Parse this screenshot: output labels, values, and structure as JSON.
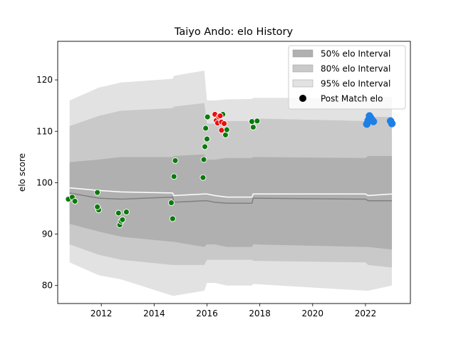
{
  "chart_data": {
    "type": "scatter",
    "title": "Taiyo Ando: elo History",
    "xlabel": "",
    "ylabel": "elo score",
    "xlim": [
      2010.35,
      2023.7
    ],
    "ylim": [
      76.5,
      127.5
    ],
    "x_ticks": [
      2012,
      2014,
      2016,
      2018,
      2020,
      2022
    ],
    "y_ticks": [
      80,
      90,
      100,
      110,
      120
    ],
    "grid": false,
    "legend_position": "top-right",
    "legend": [
      {
        "label": "50% elo Interval",
        "kind": "band",
        "color": "#b0b0b0"
      },
      {
        "label": "80% elo Interval",
        "kind": "band",
        "color": "#c9c9c9"
      },
      {
        "label": "95% elo Interval",
        "kind": "band",
        "color": "#e2e2e2"
      },
      {
        "label": "Post Match elo",
        "kind": "marker",
        "color": "#000000"
      }
    ],
    "colors": {
      "band50": "#b0b0b0",
      "band80": "#c9c9c9",
      "band95": "#e2e2e2",
      "mean_line": "#808080",
      "median_line": "#ffffff",
      "green_points": "#0b7a0b",
      "red_points": "#e81010",
      "blue_points": "#1e7fe6"
    },
    "bands": {
      "x": [
        2010.8,
        2011.9,
        2012.75,
        2014.7,
        2014.75,
        2015.9,
        2016.0,
        2016.3,
        2016.75,
        2017.7,
        2017.75,
        2022.0,
        2022.1,
        2023.0
      ],
      "p95_high": [
        116.0,
        118.5,
        119.5,
        120.2,
        120.8,
        121.8,
        116.0,
        116.0,
        116.2,
        116.3,
        116.5,
        116.5,
        116.7,
        116.7
      ],
      "p95_low": [
        84.5,
        82.0,
        81.2,
        78.0,
        78.0,
        79.0,
        80.5,
        80.5,
        80.0,
        80.0,
        80.3,
        79.0,
        79.0,
        80.0
      ],
      "p80_high": [
        111.0,
        113.0,
        114.0,
        114.5,
        114.8,
        115.5,
        111.5,
        111.5,
        112.0,
        112.0,
        112.5,
        112.0,
        112.8,
        112.8
      ],
      "p80_low": [
        88.0,
        86.0,
        85.0,
        84.0,
        84.0,
        84.0,
        85.0,
        85.0,
        85.0,
        85.0,
        84.8,
        84.5,
        84.0,
        83.5
      ],
      "p50_high": [
        104.0,
        104.5,
        105.0,
        105.0,
        105.2,
        105.5,
        104.5,
        104.5,
        104.8,
        104.8,
        105.0,
        104.8,
        105.2,
        105.2
      ],
      "p50_low": [
        92.0,
        90.5,
        89.5,
        88.5,
        88.5,
        87.5,
        88.0,
        88.0,
        87.5,
        87.5,
        88.0,
        87.5,
        87.5,
        87.0
      ],
      "mean": [
        98.0,
        97.0,
        96.8,
        97.2,
        96.2,
        96.5,
        96.5,
        96.2,
        96.0,
        96.0,
        97.0,
        96.8,
        96.5,
        96.5
      ],
      "median": [
        99.0,
        98.5,
        98.2,
        98.0,
        97.5,
        97.8,
        97.8,
        97.5,
        97.2,
        97.2,
        97.8,
        97.8,
        97.5,
        97.8
      ]
    },
    "series": [
      {
        "group": "green",
        "x": [
          2010.75,
          2010.9,
          2011.0,
          2011.85,
          2011.9,
          2011.85,
          2012.65,
          2012.7,
          2012.75,
          2012.8,
          2012.95,
          2014.65,
          2014.7,
          2014.75,
          2014.8,
          2015.85,
          2015.88,
          2015.92,
          2015.95,
          2016.0,
          2016.02,
          2016.6,
          2016.7,
          2016.75,
          2017.7,
          2017.75,
          2017.9
        ],
        "y": [
          96.8,
          97.2,
          96.4,
          98.1,
          94.7,
          95.3,
          94.1,
          91.8,
          92.5,
          92.8,
          94.3,
          96.1,
          93.0,
          101.2,
          104.3,
          101.0,
          104.5,
          107.0,
          110.6,
          108.5,
          112.8,
          113.3,
          109.3,
          110.3,
          111.9,
          110.8,
          112.0
        ]
      },
      {
        "group": "red",
        "x": [
          2016.3,
          2016.35,
          2016.4,
          2016.45,
          2016.5,
          2016.55,
          2016.55,
          2016.65
        ],
        "y": [
          113.3,
          112.1,
          111.6,
          112.8,
          113.0,
          110.2,
          111.8,
          111.5
        ]
      },
      {
        "group": "blue",
        "x": [
          2022.05,
          2022.1,
          2022.15,
          2022.2,
          2022.25,
          2022.3,
          2022.95,
          2023.0
        ],
        "y": [
          111.4,
          112.1,
          113.0,
          112.6,
          112.2,
          111.9,
          112.0,
          111.5
        ]
      }
    ]
  }
}
